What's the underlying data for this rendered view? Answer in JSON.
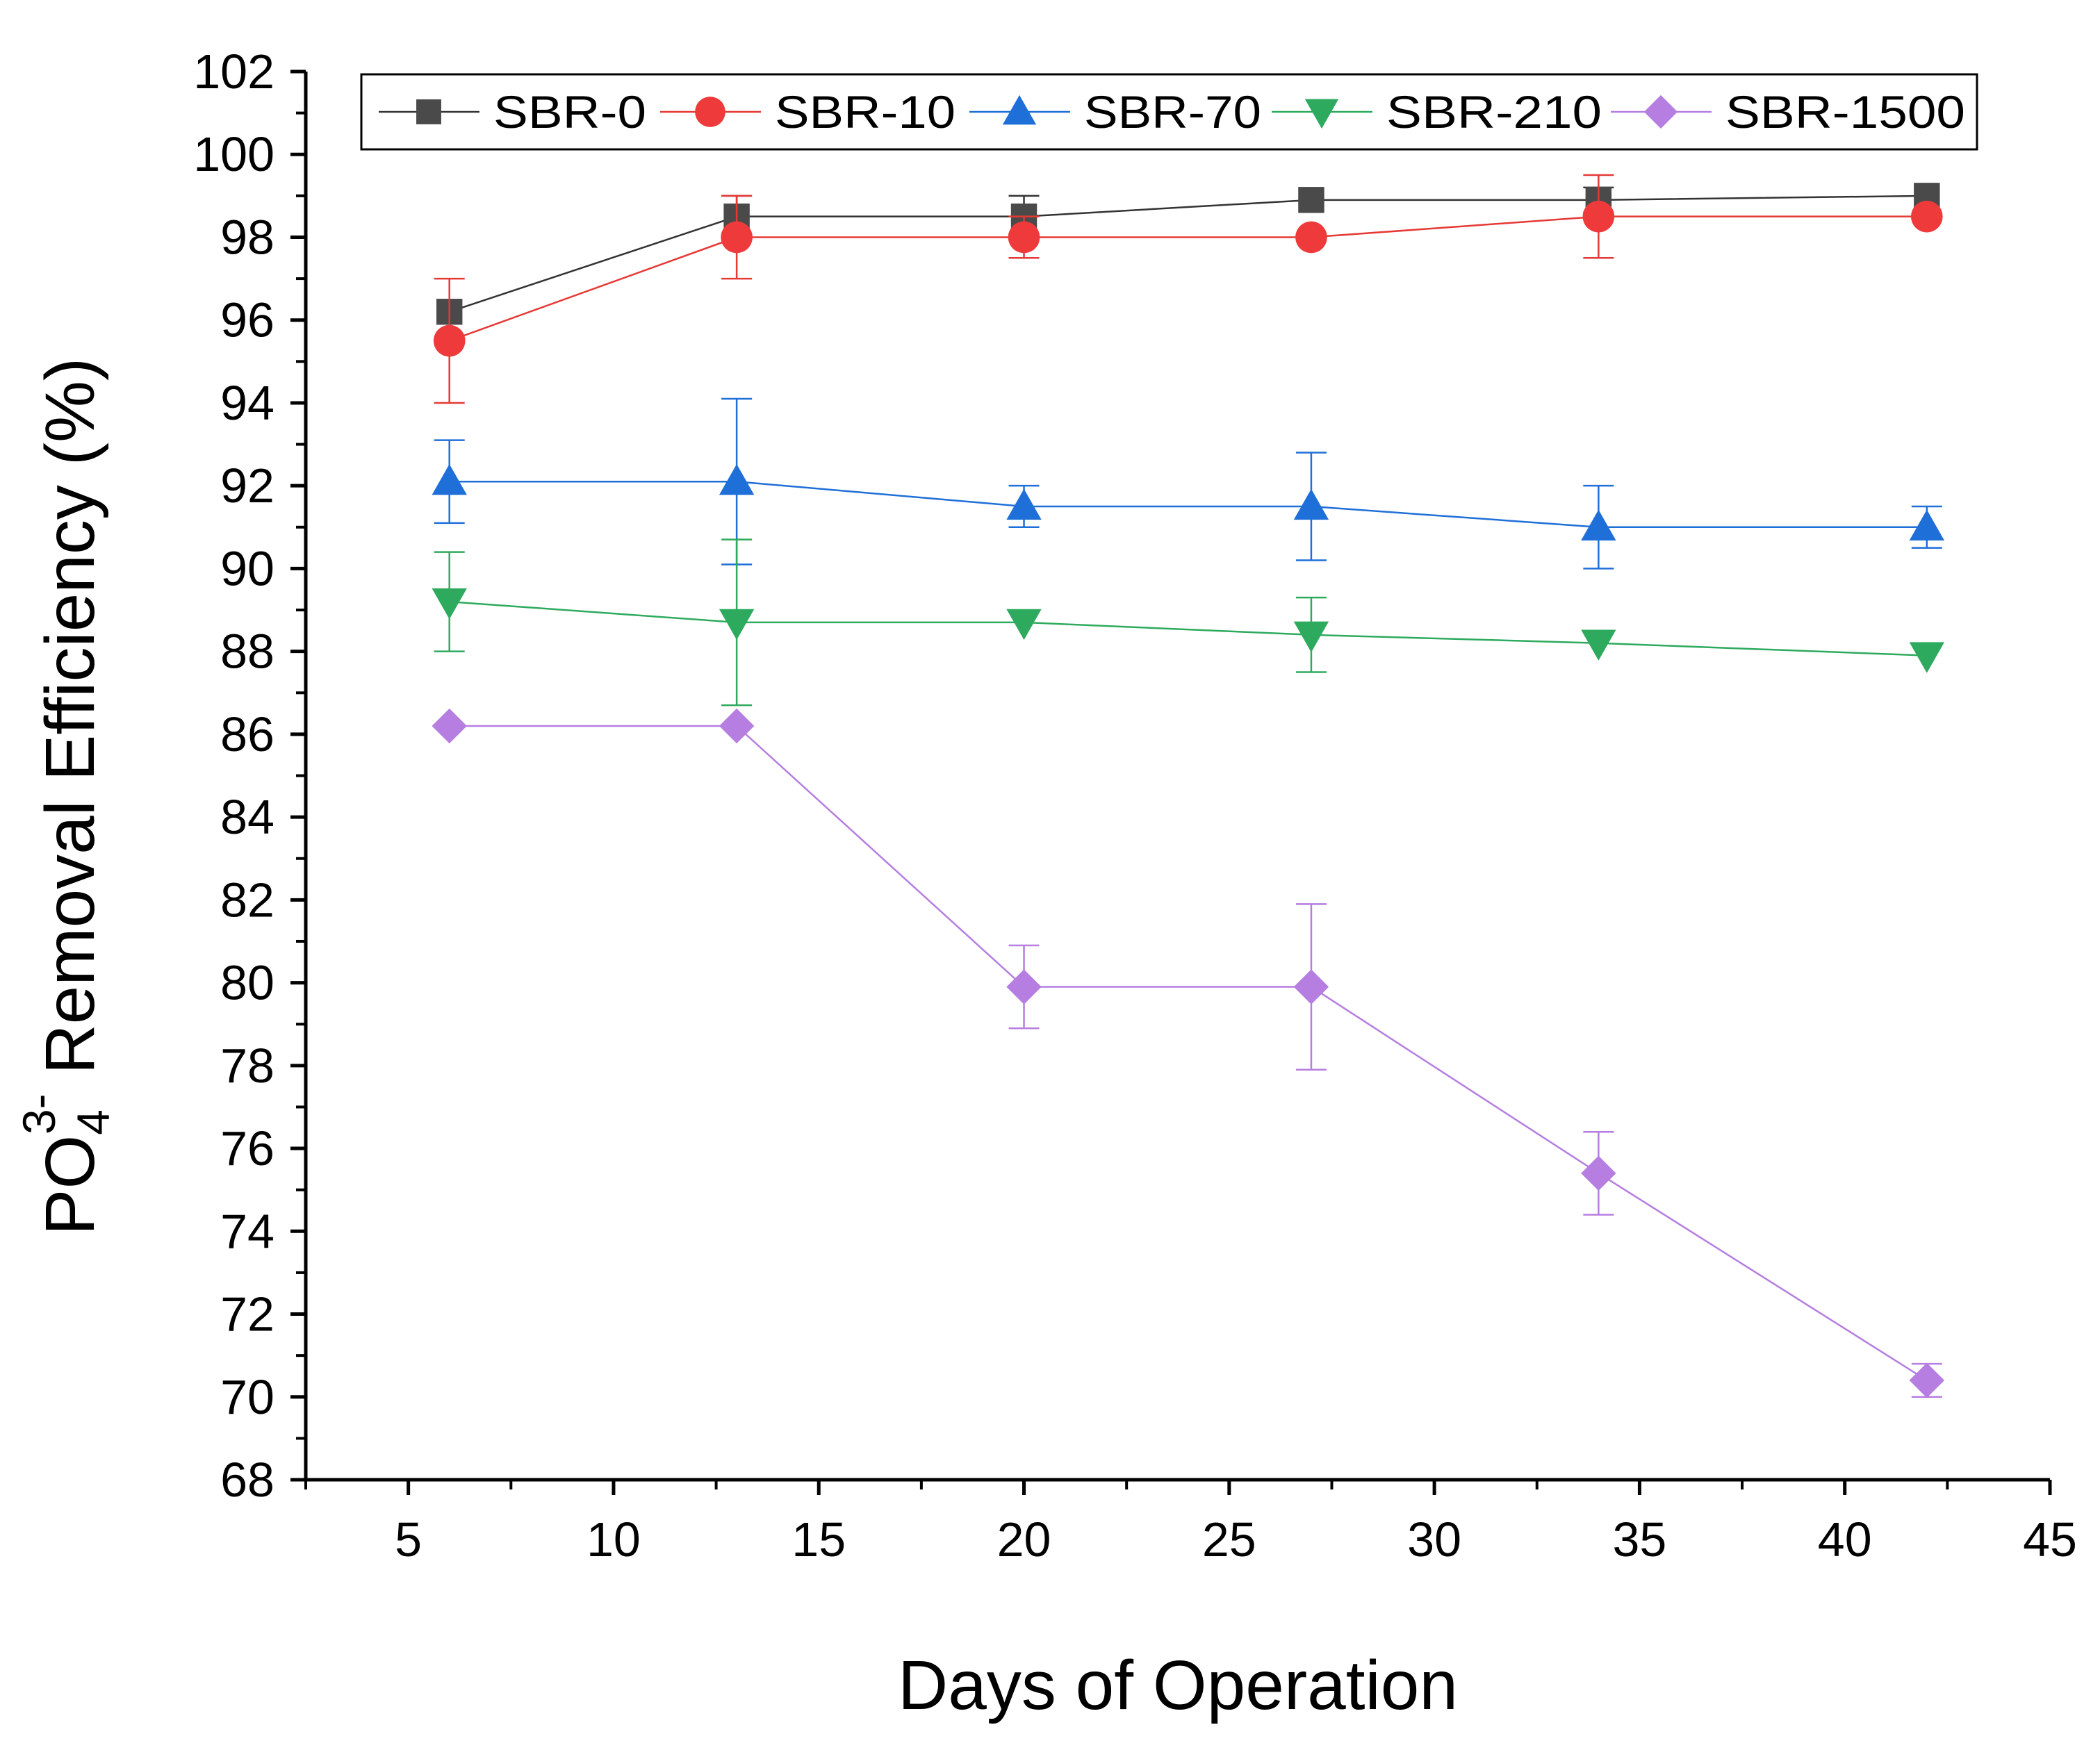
{
  "chart_data": {
    "type": "line",
    "xlabel": "Days of Operation",
    "ylabel_parts": {
      "main": "PO",
      "subscript": "4",
      "superscript": "3-",
      "rest": " Removal Efficiency (%)"
    },
    "xlim": [
      2.5,
      45
    ],
    "ylim": [
      68,
      102
    ],
    "x_ticks": [
      5,
      10,
      15,
      20,
      25,
      30,
      35,
      40,
      45
    ],
    "y_ticks": [
      68,
      70,
      72,
      74,
      76,
      78,
      80,
      82,
      84,
      86,
      88,
      90,
      92,
      94,
      96,
      98,
      100,
      102
    ],
    "x": [
      6,
      13,
      20,
      27,
      34,
      42
    ],
    "legend_position": "top",
    "series": [
      {
        "name": "SBR-0",
        "marker": "square",
        "color": "#4a4a4a",
        "line_color": "#333333",
        "values": [
          96.2,
          98.5,
          98.5,
          98.9,
          98.9,
          99.0
        ],
        "errors": [
          0.0,
          0.5,
          0.5,
          0.0,
          0.3,
          0.0
        ]
      },
      {
        "name": "SBR-10",
        "marker": "circle",
        "color": "#ee3a3a",
        "line_color": "#e53935",
        "values": [
          95.5,
          98.0,
          98.0,
          98.0,
          98.5,
          98.5
        ],
        "errors": [
          1.5,
          1.0,
          0.5,
          0.0,
          1.0,
          0.0
        ]
      },
      {
        "name": "SBR-70",
        "marker": "triangle-up",
        "color": "#1f6fd8",
        "line_color": "#1f6fd8",
        "values": [
          92.1,
          92.1,
          91.5,
          91.5,
          91.0,
          91.0
        ],
        "errors": [
          1.0,
          2.0,
          0.5,
          1.3,
          1.0,
          0.5
        ]
      },
      {
        "name": "SBR-210",
        "marker": "triangle-down",
        "color": "#2eaa5e",
        "line_color": "#2eaa5e",
        "values": [
          89.2,
          88.7,
          88.7,
          88.4,
          88.2,
          87.9
        ],
        "errors": [
          1.2,
          2.0,
          0.0,
          0.9,
          0.0,
          0.0
        ]
      },
      {
        "name": "SBR-1500",
        "marker": "diamond",
        "color": "#b57ee0",
        "line_color": "#b57ee0",
        "values": [
          86.2,
          86.2,
          79.9,
          79.9,
          75.4,
          70.4
        ],
        "errors": [
          0.0,
          0.0,
          1.0,
          2.0,
          1.0,
          0.4
        ]
      }
    ]
  }
}
